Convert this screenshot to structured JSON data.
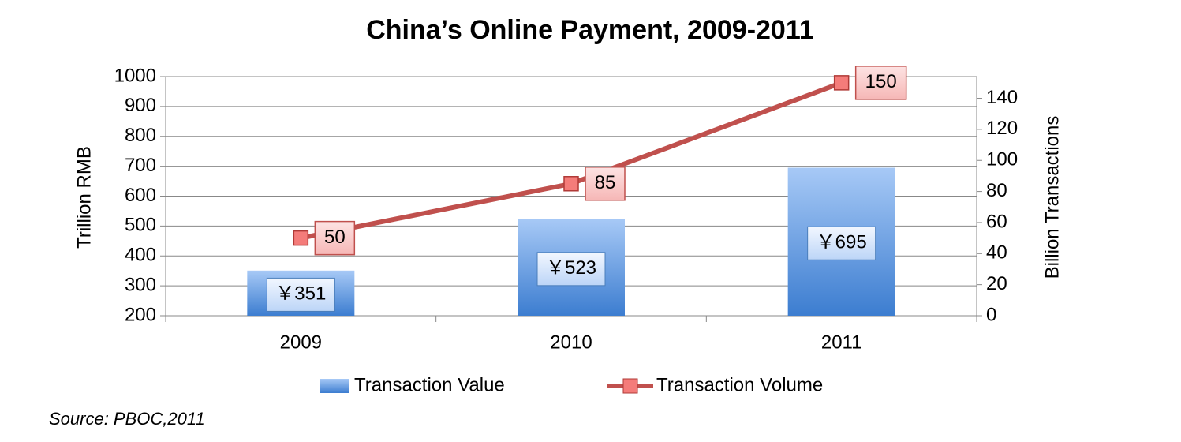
{
  "chart_data": {
    "type": "bar-line",
    "title": "China’s Online Payment, 2009-2011",
    "y_label": "Trillion RMB",
    "y2_label": "Billion Transactions",
    "source": "Source: PBOC,2011",
    "categories": [
      "2009",
      "2010",
      "2011"
    ],
    "series": [
      {
        "name": "Transaction Value",
        "type": "bar",
        "color": "#4a86d4",
        "values": [
          351,
          523,
          695
        ],
        "value_labels": [
          "￥351",
          "￥523",
          "￥695"
        ]
      },
      {
        "name": "Transaction Volume",
        "type": "line",
        "axis": "y2",
        "color": "#c0504d",
        "values": [
          50,
          85,
          150
        ]
      }
    ],
    "ylim": [
      200,
      1000
    ],
    "yticks": [
      200,
      300,
      400,
      500,
      600,
      700,
      800,
      900,
      1000
    ],
    "y2lim": [
      0,
      154
    ],
    "y2ticks": [
      0,
      20,
      40,
      60,
      80,
      100,
      120,
      140
    ],
    "grid": true
  }
}
